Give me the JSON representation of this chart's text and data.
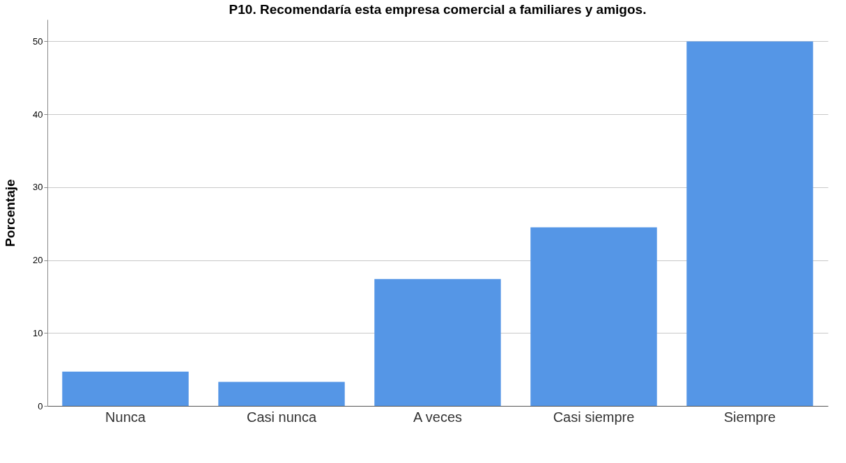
{
  "chart_data": {
    "type": "bar",
    "title": "P10. Recomendaría esta empresa comercial a familiares y amigos.",
    "ylabel": "Porcentaje",
    "categories": [
      "Nunca",
      "Casi nunca",
      "A veces",
      "Casi siempre",
      "Siempre"
    ],
    "values": [
      4.7,
      3.3,
      17.4,
      24.5,
      50.0
    ],
    "color": "#5596e6",
    "ylim": [
      0,
      53
    ],
    "yticks": [
      0,
      10,
      20,
      30,
      40,
      50
    ],
    "grid": "y"
  }
}
